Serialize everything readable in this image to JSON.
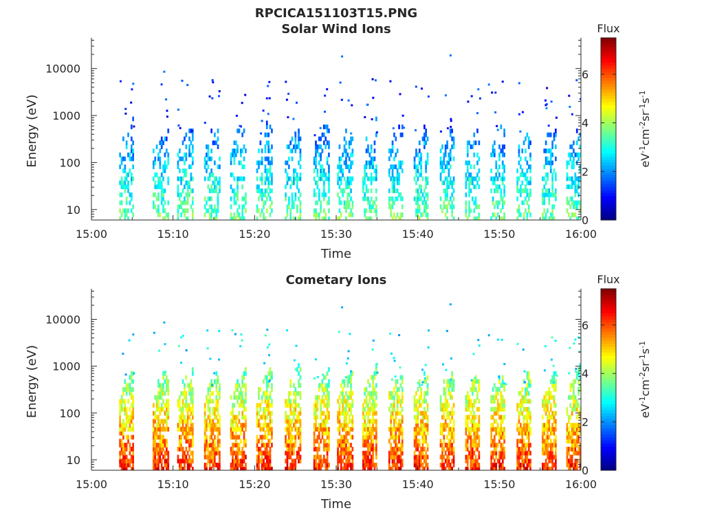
{
  "figure_title": "RPCICA151103T15.PNG",
  "chart_data": [
    {
      "type": "heatmap",
      "title": "Solar Wind Ions",
      "xlabel": "Time",
      "ylabel": "Energy (eV)",
      "x_ticks": [
        "15:00",
        "15:10",
        "15:20",
        "15:30",
        "15:40",
        "15:50",
        "16:00"
      ],
      "x_range_minutes": [
        0,
        60
      ],
      "y_scale": "log",
      "y_ticks": [
        "10",
        "100",
        "1000",
        "10000"
      ],
      "y_range_eV": [
        6,
        45000
      ],
      "colorbar": {
        "title": "Flux",
        "unit_main": "eV",
        "unit_exps": [
          "-1",
          "-2",
          "-1",
          "-1"
        ],
        "unit_parts": [
          "cm",
          "sr",
          "s"
        ],
        "range": [
          0,
          7.5
        ],
        "ticks": [
          "0",
          "2",
          "4",
          "6"
        ],
        "colormap": "jet"
      },
      "sweep_start_minutes": [
        3.4,
        7.5,
        10.5,
        13.8,
        17.0,
        20.2,
        23.7,
        27.2,
        30.1,
        33.2,
        36.4,
        39.5,
        42.7,
        45.8,
        48.9,
        52.1,
        55.2,
        58.2
      ],
      "typical_flux": "1-4 (blue to green), highest near 10 eV",
      "max_energy_eV": 20000
    },
    {
      "type": "heatmap",
      "title": "Cometary Ions",
      "xlabel": "Time",
      "ylabel": "Energy (eV)",
      "x_ticks": [
        "15:00",
        "15:10",
        "15:20",
        "15:30",
        "15:40",
        "15:50",
        "16:00"
      ],
      "x_range_minutes": [
        0,
        60
      ],
      "y_scale": "log",
      "y_ticks": [
        "10",
        "100",
        "1000",
        "10000"
      ],
      "y_range_eV": [
        6,
        45000
      ],
      "colorbar": {
        "title": "Flux",
        "unit_main": "eV",
        "unit_exps": [
          "-1",
          "-2",
          "-1",
          "-1"
        ],
        "unit_parts": [
          "cm",
          "sr",
          "s"
        ],
        "range": [
          0,
          7.5
        ],
        "ticks": [
          "0",
          "2",
          "4",
          "6"
        ],
        "colormap": "jet"
      },
      "sweep_start_minutes": [
        3.4,
        7.5,
        10.5,
        13.8,
        17.0,
        20.2,
        23.7,
        27.2,
        30.1,
        33.2,
        36.4,
        39.5,
        42.7,
        45.8,
        48.9,
        52.1,
        55.2,
        58.2
      ],
      "typical_flux": "3-6 (green to orange/red), peak near 10-40 eV",
      "max_energy_eV": 22000
    }
  ]
}
